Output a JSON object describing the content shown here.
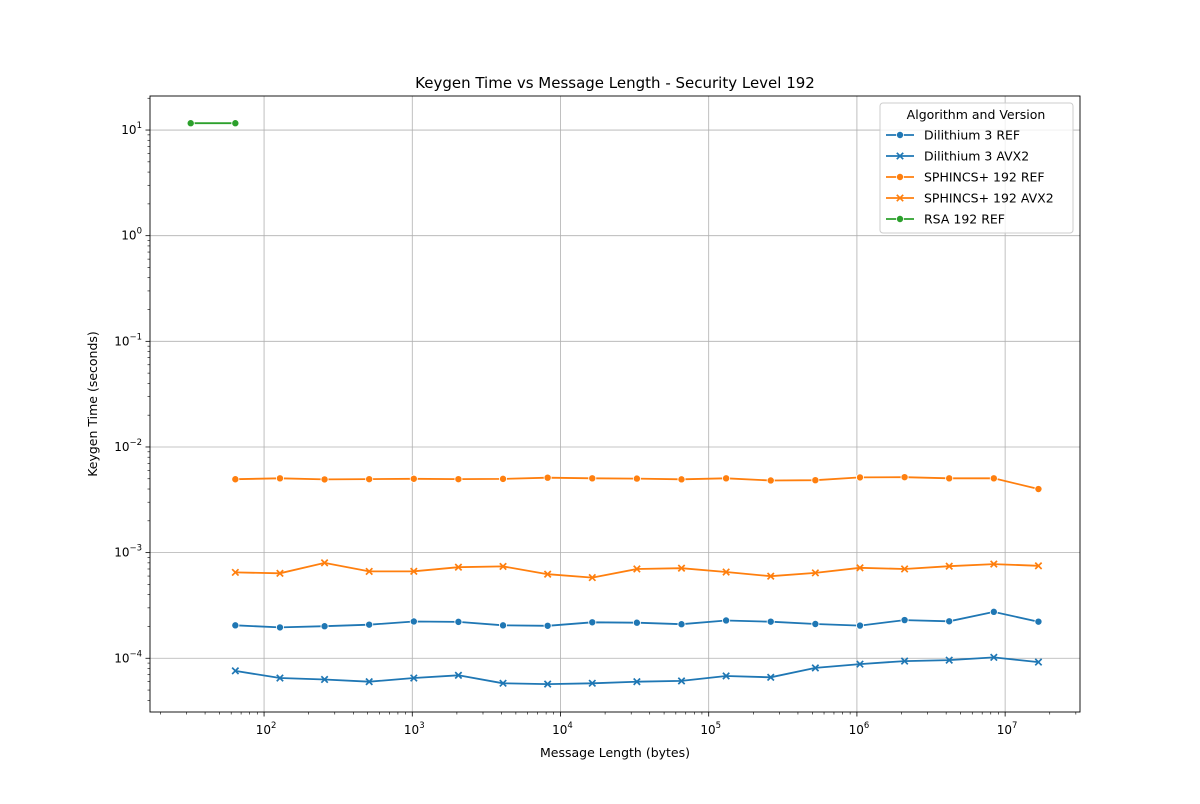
{
  "chart_data": {
    "type": "line",
    "title": "Keygen Time vs Message Length - Security Level 192",
    "xlabel": "Message Length (bytes)",
    "ylabel": "Keygen Time (seconds)",
    "x_scale": "log",
    "y_scale": "log",
    "xlim": [
      17,
      32000000
    ],
    "ylim": [
      3.1e-05,
      21
    ],
    "grid": true,
    "legend": {
      "title": "Algorithm and Version",
      "placement": "top-right"
    },
    "x_ticks": [
      {
        "value": 100,
        "base": "10",
        "exp": "2"
      },
      {
        "value": 1000,
        "base": "10",
        "exp": "3"
      },
      {
        "value": 10000,
        "base": "10",
        "exp": "4"
      },
      {
        "value": 100000,
        "base": "10",
        "exp": "5"
      },
      {
        "value": 1000000,
        "base": "10",
        "exp": "6"
      },
      {
        "value": 10000000,
        "base": "10",
        "exp": "7"
      }
    ],
    "y_ticks": [
      {
        "value": 0.0001,
        "base": "10",
        "exp": "−4"
      },
      {
        "value": 0.001,
        "base": "10",
        "exp": "−3"
      },
      {
        "value": 0.01,
        "base": "10",
        "exp": "−2"
      },
      {
        "value": 0.1,
        "base": "10",
        "exp": "−1"
      },
      {
        "value": 1,
        "base": "10",
        "exp": "0"
      },
      {
        "value": 10,
        "base": "10",
        "exp": "1"
      }
    ],
    "series": [
      {
        "name": "Dilithium 3 REF",
        "color": "#1f77b4",
        "marker": "circle",
        "x": [
          64,
          128,
          256,
          512,
          1024,
          2048,
          4096,
          8192,
          16384,
          32768,
          65536,
          131072,
          262144,
          524288,
          1048576,
          2097152,
          4194304,
          8388608,
          16777216
        ],
        "values": [
          0.000205,
          0.000196,
          0.000201,
          0.000208,
          0.000223,
          0.000221,
          0.000205,
          0.000203,
          0.000219,
          0.000217,
          0.00021,
          0.000228,
          0.000222,
          0.000211,
          0.000204,
          0.00023,
          0.000224,
          0.000275,
          0.000222
        ]
      },
      {
        "name": "Dilithium 3 AVX2",
        "color": "#1f77b4",
        "marker": "x",
        "x": [
          64,
          128,
          256,
          512,
          1024,
          2048,
          4096,
          8192,
          16384,
          32768,
          65536,
          131072,
          262144,
          524288,
          1048576,
          2097152,
          4194304,
          8388608,
          16777216
        ],
        "values": [
          7.6e-05,
          6.5e-05,
          6.3e-05,
          6e-05,
          6.5e-05,
          6.9e-05,
          5.8e-05,
          5.7e-05,
          5.8e-05,
          6e-05,
          6.1e-05,
          6.8e-05,
          6.6e-05,
          8.1e-05,
          8.8e-05,
          9.4e-05,
          9.6e-05,
          0.000102,
          9.2e-05
        ]
      },
      {
        "name": "SPHINCS+ 192 REF",
        "color": "#ff7f0e",
        "marker": "circle",
        "x": [
          64,
          128,
          256,
          512,
          1024,
          2048,
          4096,
          8192,
          16384,
          32768,
          65536,
          131072,
          262144,
          524288,
          1048576,
          2097152,
          4194304,
          8388608,
          16777216
        ],
        "values": [
          0.00495,
          0.00505,
          0.00493,
          0.00496,
          0.005,
          0.00496,
          0.00499,
          0.00512,
          0.00505,
          0.00502,
          0.00494,
          0.00505,
          0.00482,
          0.00485,
          0.00515,
          0.00518,
          0.00505,
          0.00505,
          0.004
        ]
      },
      {
        "name": "SPHINCS+ 192 AVX2",
        "color": "#ff7f0e",
        "marker": "x",
        "x": [
          64,
          128,
          256,
          512,
          1024,
          2048,
          4096,
          8192,
          16384,
          32768,
          65536,
          131072,
          262144,
          524288,
          1048576,
          2097152,
          4194304,
          8388608,
          16777216
        ],
        "values": [
          0.00065,
          0.000637,
          0.0008,
          0.000664,
          0.000665,
          0.000728,
          0.00074,
          0.000625,
          0.00058,
          0.0007,
          0.000712,
          0.000655,
          0.000598,
          0.000643,
          0.000718,
          0.0007,
          0.000744,
          0.000779,
          0.00075
        ]
      },
      {
        "name": "RSA 192 REF",
        "color": "#2ca02c",
        "marker": "circle",
        "x": [
          32,
          64
        ],
        "values": [
          11.6,
          11.6
        ]
      }
    ]
  }
}
